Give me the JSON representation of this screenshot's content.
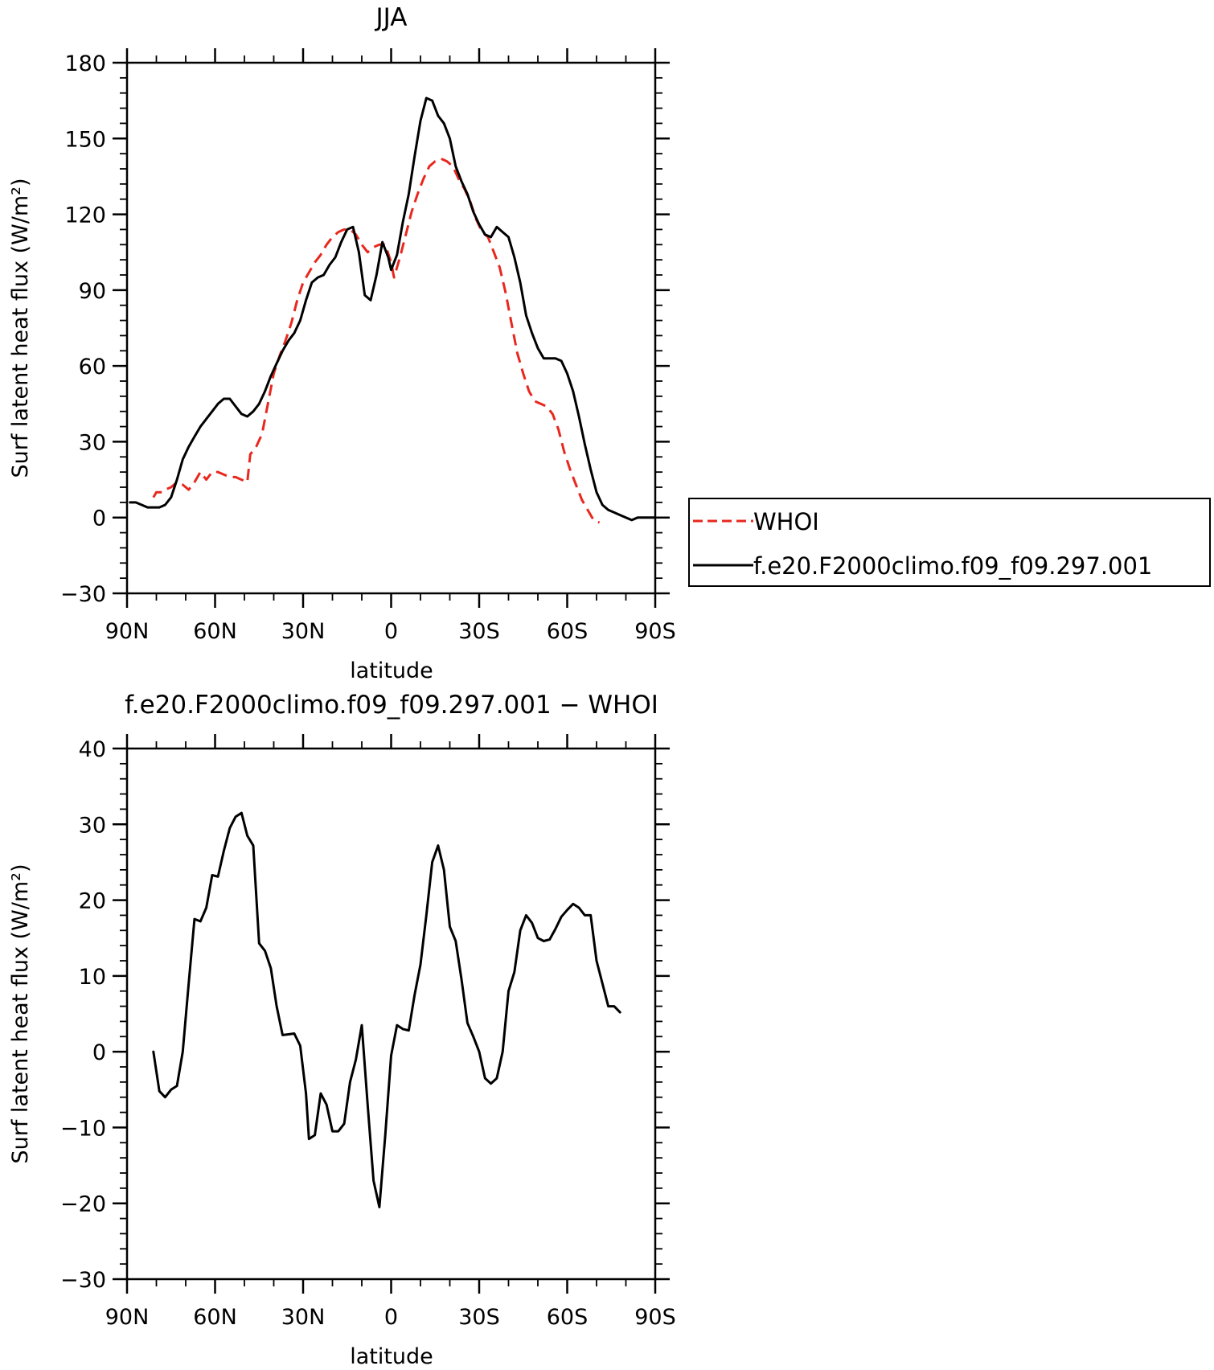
{
  "chart_data": [
    {
      "type": "line",
      "title": "JJA",
      "xlabel": "latitude",
      "ylabel": "Surf latent heat flux (W/m²)",
      "xlim": [
        -90,
        90
      ],
      "ylim": [
        -30,
        180
      ],
      "x_ticks": [
        -90,
        -60,
        -30,
        0,
        30,
        60,
        90
      ],
      "x_tick_labels": [
        "90N",
        "60N",
        "30N",
        "0",
        "30S",
        "60S",
        "90S"
      ],
      "y_ticks": [
        -30,
        0,
        30,
        60,
        90,
        120,
        150,
        180
      ],
      "y_tick_labels": [
        "−30",
        "0",
        "30",
        "60",
        "90",
        "120",
        "150",
        "180"
      ],
      "grid": false,
      "legend_position": "right",
      "series": [
        {
          "name": "WHOI",
          "color": "#e8281e",
          "dash": "dashed",
          "points": [
            [
              -81,
              8
            ],
            [
              -80,
              10
            ],
            [
              -78,
              10
            ],
            [
              -77,
              11
            ],
            [
              -75,
              12
            ],
            [
              -73,
              14
            ],
            [
              -71,
              13
            ],
            [
              -69,
              11
            ],
            [
              -67,
              14
            ],
            [
              -65,
              18
            ],
            [
              -63,
              15
            ],
            [
              -61,
              18
            ],
            [
              -59,
              18
            ],
            [
              -57,
              17
            ],
            [
              -55,
              16
            ],
            [
              -53,
              16
            ],
            [
              -51,
              15
            ],
            [
              -49,
              14
            ],
            [
              -48,
              25
            ],
            [
              -46,
              28
            ],
            [
              -44,
              33
            ],
            [
              -42,
              45
            ],
            [
              -40,
              57
            ],
            [
              -38,
              64
            ],
            [
              -36,
              70
            ],
            [
              -34,
              77
            ],
            [
              -32,
              86
            ],
            [
              -30,
              93
            ],
            [
              -28,
              97
            ],
            [
              -26,
              101
            ],
            [
              -24,
              104
            ],
            [
              -22,
              108
            ],
            [
              -20,
              111
            ],
            [
              -18,
              113
            ],
            [
              -16,
              114
            ],
            [
              -14,
              114
            ],
            [
              -12,
              112
            ],
            [
              -10,
              108
            ],
            [
              -8,
              105
            ],
            [
              -6,
              107
            ],
            [
              -4,
              108
            ],
            [
              -2,
              108
            ],
            [
              0,
              101
            ],
            [
              1,
              95
            ],
            [
              3,
              103
            ],
            [
              5,
              112
            ],
            [
              7,
              121
            ],
            [
              9,
              128
            ],
            [
              11,
              134
            ],
            [
              13,
              139
            ],
            [
              15,
              141
            ],
            [
              17,
              142
            ],
            [
              19,
              141
            ],
            [
              21,
              139
            ],
            [
              23,
              134
            ],
            [
              25,
              130
            ],
            [
              27,
              125
            ],
            [
              29,
              118
            ],
            [
              31,
              113
            ],
            [
              33,
              111
            ],
            [
              35,
              105
            ],
            [
              37,
              99
            ],
            [
              39,
              89
            ],
            [
              41,
              77
            ],
            [
              43,
              65
            ],
            [
              45,
              57
            ],
            [
              47,
              50
            ],
            [
              49,
              46
            ],
            [
              51,
              45
            ],
            [
              53,
              44
            ],
            [
              55,
              41
            ],
            [
              57,
              35
            ],
            [
              59,
              26
            ],
            [
              61,
              19
            ],
            [
              63,
              13
            ],
            [
              65,
              7
            ],
            [
              67,
              3
            ],
            [
              69,
              -1
            ],
            [
              71,
              -2
            ]
          ]
        },
        {
          "name": "f.e20.F2000climo.f09_f09.297.001",
          "color": "#000000",
          "dash": "solid",
          "points": [
            [
              -89,
              6
            ],
            [
              -87,
              6
            ],
            [
              -85,
              5
            ],
            [
              -83,
              4
            ],
            [
              -81,
              4
            ],
            [
              -79,
              4
            ],
            [
              -77,
              5
            ],
            [
              -75,
              8
            ],
            [
              -73,
              15
            ],
            [
              -71,
              23
            ],
            [
              -69,
              28
            ],
            [
              -67,
              32
            ],
            [
              -65,
              36
            ],
            [
              -63,
              39
            ],
            [
              -61,
              42
            ],
            [
              -59,
              45
            ],
            [
              -57,
              47
            ],
            [
              -55,
              47
            ],
            [
              -53,
              44
            ],
            [
              -51,
              41
            ],
            [
              -49,
              40
            ],
            [
              -47,
              42
            ],
            [
              -45,
              45
            ],
            [
              -43,
              50
            ],
            [
              -41,
              56
            ],
            [
              -39,
              61
            ],
            [
              -37,
              66
            ],
            [
              -35,
              70
            ],
            [
              -33,
              73
            ],
            [
              -31,
              78
            ],
            [
              -29,
              86
            ],
            [
              -27,
              93
            ],
            [
              -25,
              95
            ],
            [
              -23,
              96
            ],
            [
              -21,
              100
            ],
            [
              -19,
              103
            ],
            [
              -17,
              109
            ],
            [
              -15,
              114
            ],
            [
              -13,
              115
            ],
            [
              -11,
              105
            ],
            [
              -9,
              88
            ],
            [
              -7,
              86
            ],
            [
              -5,
              96
            ],
            [
              -3,
              109
            ],
            [
              -1,
              103
            ],
            [
              0,
              98
            ],
            [
              2,
              104
            ],
            [
              4,
              117
            ],
            [
              6,
              128
            ],
            [
              8,
              143
            ],
            [
              10,
              157
            ],
            [
              12,
              166
            ],
            [
              14,
              165
            ],
            [
              16,
              159
            ],
            [
              18,
              156
            ],
            [
              20,
              150
            ],
            [
              22,
              139
            ],
            [
              24,
              133
            ],
            [
              26,
              128
            ],
            [
              28,
              121
            ],
            [
              30,
              116
            ],
            [
              32,
              112
            ],
            [
              34,
              111
            ],
            [
              36,
              115
            ],
            [
              38,
              113
            ],
            [
              40,
              111
            ],
            [
              42,
              103
            ],
            [
              44,
              93
            ],
            [
              46,
              80
            ],
            [
              48,
              73
            ],
            [
              50,
              67
            ],
            [
              52,
              63
            ],
            [
              54,
              63
            ],
            [
              56,
              63
            ],
            [
              58,
              62
            ],
            [
              60,
              57
            ],
            [
              62,
              50
            ],
            [
              64,
              40
            ],
            [
              66,
              29
            ],
            [
              68,
              19
            ],
            [
              70,
              10
            ],
            [
              72,
              5
            ],
            [
              74,
              3
            ],
            [
              76,
              2
            ],
            [
              78,
              1
            ],
            [
              80,
              0
            ],
            [
              82,
              -1
            ],
            [
              84,
              0
            ],
            [
              86,
              0
            ],
            [
              88,
              0
            ],
            [
              90,
              0
            ]
          ]
        }
      ]
    },
    {
      "type": "line",
      "title": "f.e20.F2000climo.f09_f09.297.001 − WHOI",
      "xlabel": "latitude",
      "ylabel": "Surf latent heat flux (W/m²)",
      "xlim": [
        -90,
        90
      ],
      "ylim": [
        -30,
        40
      ],
      "x_ticks": [
        -90,
        -60,
        -30,
        0,
        30,
        60,
        90
      ],
      "x_tick_labels": [
        "90N",
        "60N",
        "30N",
        "0",
        "30S",
        "60S",
        "90S"
      ],
      "y_ticks": [
        -30,
        -20,
        -10,
        0,
        10,
        20,
        30,
        40
      ],
      "y_tick_labels": [
        "−30",
        "−20",
        "−10",
        "0",
        "10",
        "20",
        "30",
        "40"
      ],
      "grid": false,
      "series": [
        {
          "color": "#000000",
          "dash": "solid",
          "points": [
            [
              -81,
              0
            ],
            [
              -79,
              -5.2
            ],
            [
              -77,
              -6
            ],
            [
              -75,
              -5
            ],
            [
              -73,
              -4.5
            ],
            [
              -71,
              0
            ],
            [
              -69,
              9
            ],
            [
              -67,
              17.5
            ],
            [
              -65,
              17.2
            ],
            [
              -63,
              19
            ],
            [
              -61,
              23.3
            ],
            [
              -59,
              23.1
            ],
            [
              -57,
              26.5
            ],
            [
              -55,
              29.5
            ],
            [
              -53,
              31
            ],
            [
              -51,
              31.5
            ],
            [
              -49,
              28.5
            ],
            [
              -47,
              27.2
            ],
            [
              -45,
              14.3
            ],
            [
              -43,
              13.3
            ],
            [
              -41,
              11
            ],
            [
              -39,
              6
            ],
            [
              -37,
              2.2
            ],
            [
              -35,
              2.3
            ],
            [
              -33,
              2.4
            ],
            [
              -31,
              0.8
            ],
            [
              -29,
              -5.5
            ],
            [
              -28,
              -11.5
            ],
            [
              -26,
              -11
            ],
            [
              -24,
              -5.5
            ],
            [
              -22,
              -7
            ],
            [
              -20,
              -10.5
            ],
            [
              -18,
              -10.5
            ],
            [
              -16,
              -9.5
            ],
            [
              -14,
              -4
            ],
            [
              -12,
              -1
            ],
            [
              -10,
              3.5
            ],
            [
              -8,
              -7
            ],
            [
              -6,
              -17
            ],
            [
              -4,
              -20.5
            ],
            [
              -2,
              -11
            ],
            [
              0,
              -0.5
            ],
            [
              2,
              3.5
            ],
            [
              4,
              3
            ],
            [
              6,
              2.8
            ],
            [
              8,
              7.5
            ],
            [
              10,
              11.5
            ],
            [
              12,
              18
            ],
            [
              14,
              25
            ],
            [
              16,
              27.2
            ],
            [
              18,
              24
            ],
            [
              20,
              16.5
            ],
            [
              22,
              14.6
            ],
            [
              24,
              9.5
            ],
            [
              26,
              3.8
            ],
            [
              28,
              2
            ],
            [
              30,
              0
            ],
            [
              32,
              -3.5
            ],
            [
              34,
              -4.2
            ],
            [
              36,
              -3.5
            ],
            [
              38,
              0
            ],
            [
              40,
              8
            ],
            [
              42,
              10.5
            ],
            [
              44,
              16
            ],
            [
              46,
              18
            ],
            [
              48,
              17
            ],
            [
              50,
              15
            ],
            [
              52,
              14.6
            ],
            [
              54,
              14.8
            ],
            [
              56,
              16.2
            ],
            [
              58,
              17.8
            ],
            [
              60,
              18.7
            ],
            [
              62,
              19.5
            ],
            [
              64,
              19
            ],
            [
              66,
              18
            ],
            [
              68,
              18
            ],
            [
              70,
              12
            ],
            [
              72,
              9
            ],
            [
              74,
              6
            ],
            [
              76,
              6
            ],
            [
              78,
              5.2
            ]
          ]
        }
      ]
    }
  ]
}
